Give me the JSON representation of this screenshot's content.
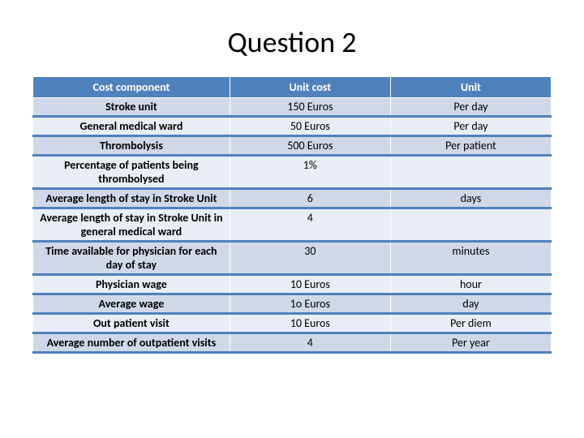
{
  "title": "Question 2",
  "table": {
    "headers": [
      "Cost component",
      "Unit cost",
      "Unit"
    ],
    "header_bg": "#4f81bd",
    "header_color": "#ffffff",
    "row_stripe_bg": "#d0d8e8",
    "row_border_color": "#4f81bd",
    "rows": [
      {
        "label": "Stroke unit",
        "cost": "150 Euros",
        "unit": "Per day"
      },
      {
        "label": "General medical ward",
        "cost": "50 Euros",
        "unit": "Per  day"
      },
      {
        "label": "Thrombolysis",
        "cost": "500 Euros",
        "unit": "Per patient"
      },
      {
        "label": "Percentage of patients being thrombolysed",
        "cost": "1%",
        "unit": ""
      },
      {
        "label": "Average length of stay in Stroke Unit",
        "cost": "6",
        "unit": "days"
      },
      {
        "label": "Average length of stay in Stroke Unit in general medical ward",
        "cost": "4",
        "unit": ""
      },
      {
        "label": "Time available for physician for each day of stay",
        "cost": "30",
        "unit": "minutes"
      },
      {
        "label": "Physician wage",
        "cost": "10 Euros",
        "unit": "hour"
      },
      {
        "label": "Average wage",
        "cost": "1o Euros",
        "unit": "day"
      },
      {
        "label": "Out patient visit",
        "cost": "10 Euros",
        "unit": "Per diem"
      },
      {
        "label": "Average number of outpatient visits",
        "cost": "4",
        "unit": "Per year"
      }
    ]
  }
}
